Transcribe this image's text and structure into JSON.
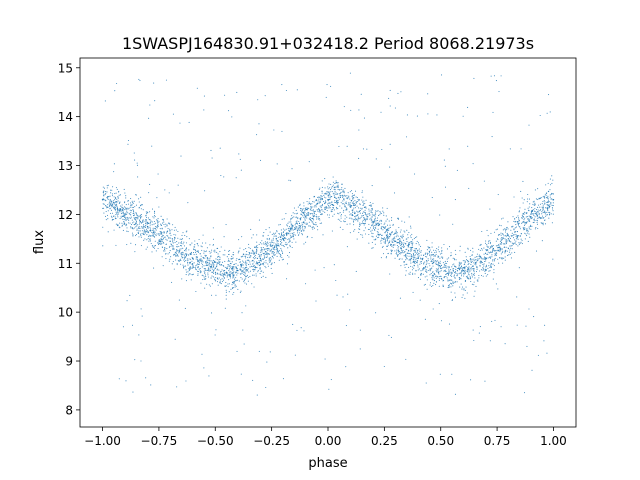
{
  "chart_data": {
    "type": "scatter",
    "title": "1SWASPJ164830.91+032418.2 Period 8068.21973s",
    "xlabel": "phase",
    "ylabel": "flux",
    "xlim": [
      -1.1,
      1.1
    ],
    "ylim": [
      7.65,
      15.2
    ],
    "xticks": [
      -1.0,
      -0.75,
      -0.5,
      -0.25,
      0.0,
      0.25,
      0.5,
      0.75,
      1.0
    ],
    "xtick_labels": [
      "−1.00",
      "−0.75",
      "−0.50",
      "−0.25",
      "0.00",
      "0.25",
      "0.50",
      "0.75",
      "1.00"
    ],
    "yticks": [
      8,
      9,
      10,
      11,
      12,
      13,
      14,
      15
    ],
    "ytick_labels": [
      "8",
      "9",
      "10",
      "11",
      "12",
      "13",
      "14",
      "15"
    ],
    "grid": false,
    "point_color": "#1f77b4",
    "series": [
      {
        "x": [
          -1.0,
          -0.9,
          -0.8,
          -0.75,
          -0.7,
          -0.6,
          -0.5,
          -0.45,
          -0.4,
          -0.3,
          -0.2,
          -0.1,
          0.0,
          0.03,
          0.1,
          0.2,
          0.3,
          0.4,
          0.5,
          0.55,
          0.6,
          0.7,
          0.8,
          0.9,
          1.0
        ],
        "y": [
          12.3,
          12.0,
          11.75,
          11.6,
          11.45,
          11.1,
          10.9,
          10.8,
          10.85,
          11.1,
          11.5,
          11.95,
          12.3,
          12.35,
          12.15,
          11.85,
          11.45,
          11.1,
          10.9,
          10.8,
          10.85,
          11.1,
          11.5,
          11.95,
          12.3
        ]
      }
    ]
  }
}
